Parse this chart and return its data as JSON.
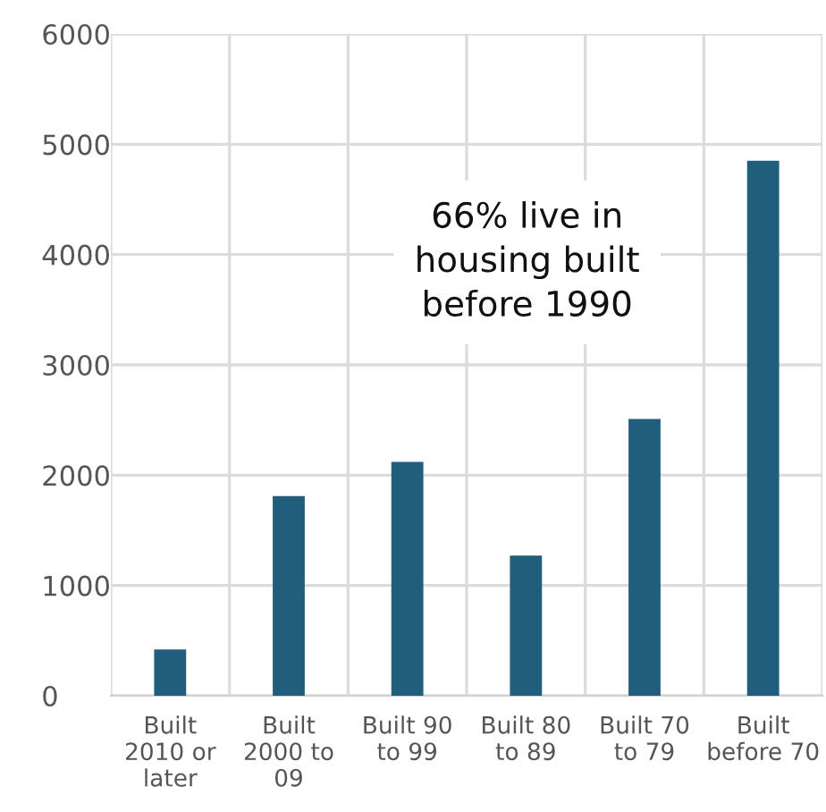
{
  "chart_data": {
    "type": "bar",
    "categories": [
      "Built\n2010 or\nlater",
      "Built\n2000 to\n09",
      "Built 90\nto 99",
      "Built 80\nto 89",
      "Built 70\nto 79",
      "Built\nbefore 70"
    ],
    "values": [
      420,
      1810,
      2120,
      1270,
      2510,
      4850
    ],
    "color": "#215e7c",
    "ylim": [
      0,
      6000
    ],
    "yticks": [
      0,
      1000,
      2000,
      3000,
      4000,
      5000,
      6000
    ],
    "grid": true,
    "annotations": [
      "66% live in\nhousing built\nbefore 1990"
    ]
  }
}
